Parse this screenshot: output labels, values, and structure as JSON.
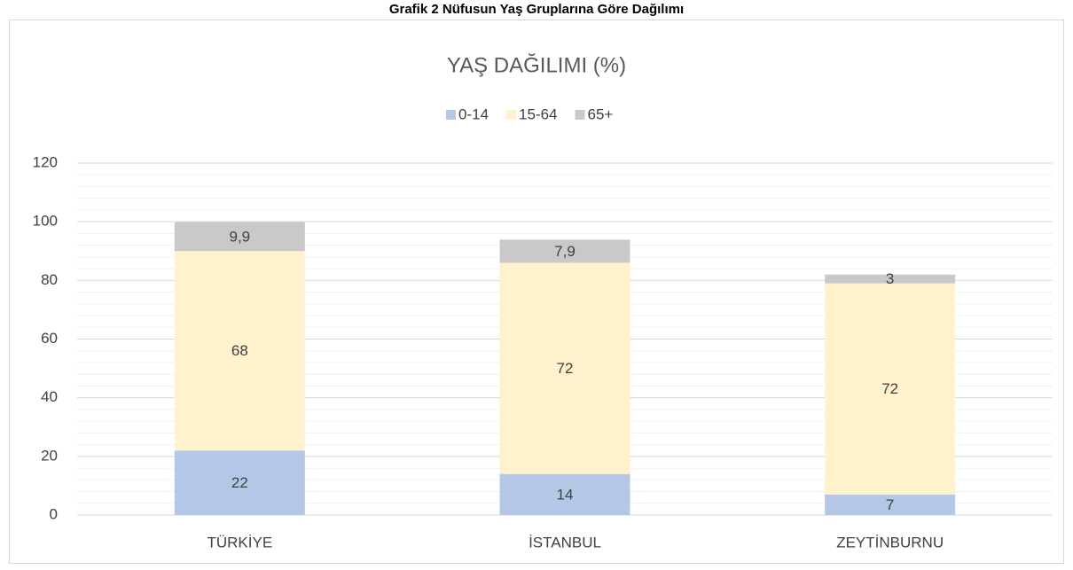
{
  "heading": "Grafik 2 Nüfusun Yaş Gruplarına Göre Dağılımı",
  "chart_data": {
    "type": "stacked_bar",
    "title": "YAŞ DAĞILIMI (%)",
    "categories": [
      "TÜRKİYE",
      "İSTANBUL",
      "ZEYTİNBURNU"
    ],
    "series": [
      {
        "name": "0-14",
        "color": "#b4c7e7",
        "values": [
          22,
          14,
          7
        ],
        "value_labels": [
          "22",
          "14",
          "7"
        ]
      },
      {
        "name": "15-64",
        "color": "#fff2cc",
        "values": [
          68,
          72,
          72
        ],
        "value_labels": [
          "68",
          "72",
          "72"
        ]
      },
      {
        "name": "65+",
        "color": "#c9c9c9",
        "values": [
          9.9,
          7.9,
          3
        ],
        "value_labels": [
          "9,9",
          "7,9",
          "3"
        ]
      }
    ],
    "ylim": [
      0,
      120
    ],
    "yticks": [
      0,
      20,
      40,
      60,
      80,
      100,
      120
    ],
    "grid": true,
    "minor_grid": true,
    "legend": "top"
  }
}
